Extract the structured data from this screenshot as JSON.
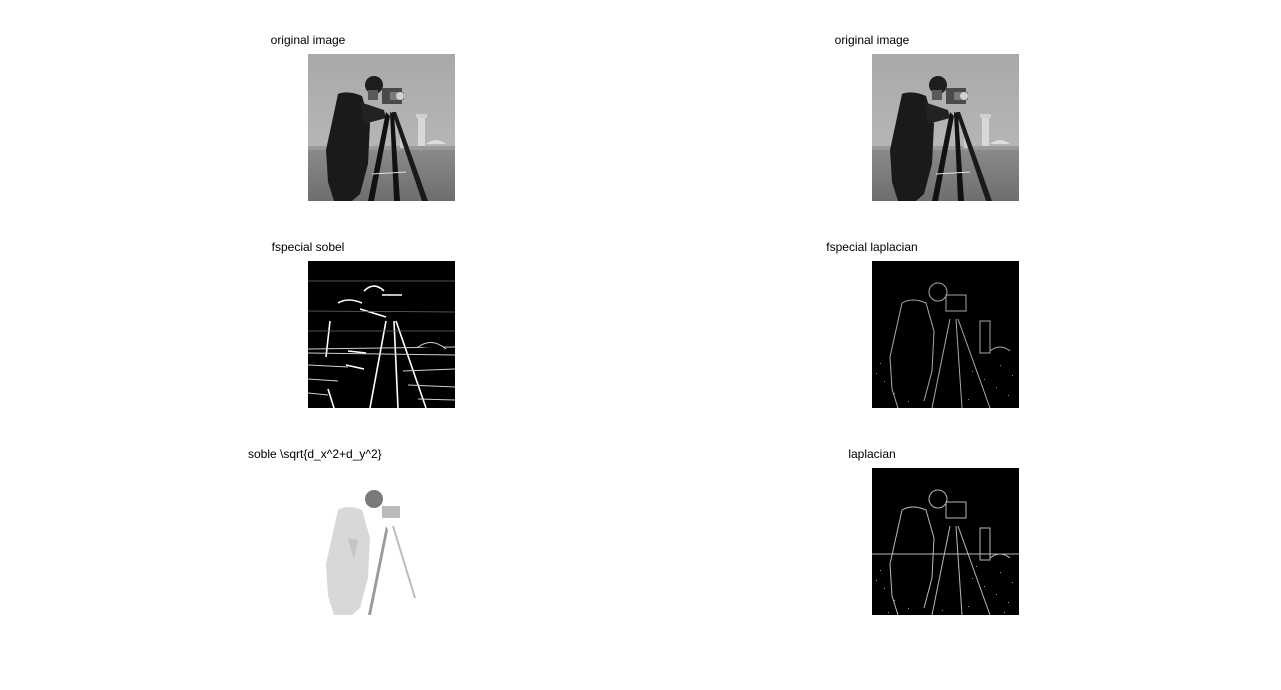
{
  "figure": {
    "panels": [
      {
        "title": "original image",
        "kind": "original"
      },
      {
        "title": "original image",
        "kind": "original"
      },
      {
        "title": "fspecial sobel",
        "kind": "sobel"
      },
      {
        "title": "fspecial laplacian",
        "kind": "laplacian"
      },
      {
        "title": "soble \\sqrt{d_x^2+d_y^2}",
        "kind": "magnitude"
      },
      {
        "title": "laplacian",
        "kind": "laplacian"
      }
    ]
  },
  "colors": {
    "background": "#ffffff",
    "title_text": "#000000"
  }
}
